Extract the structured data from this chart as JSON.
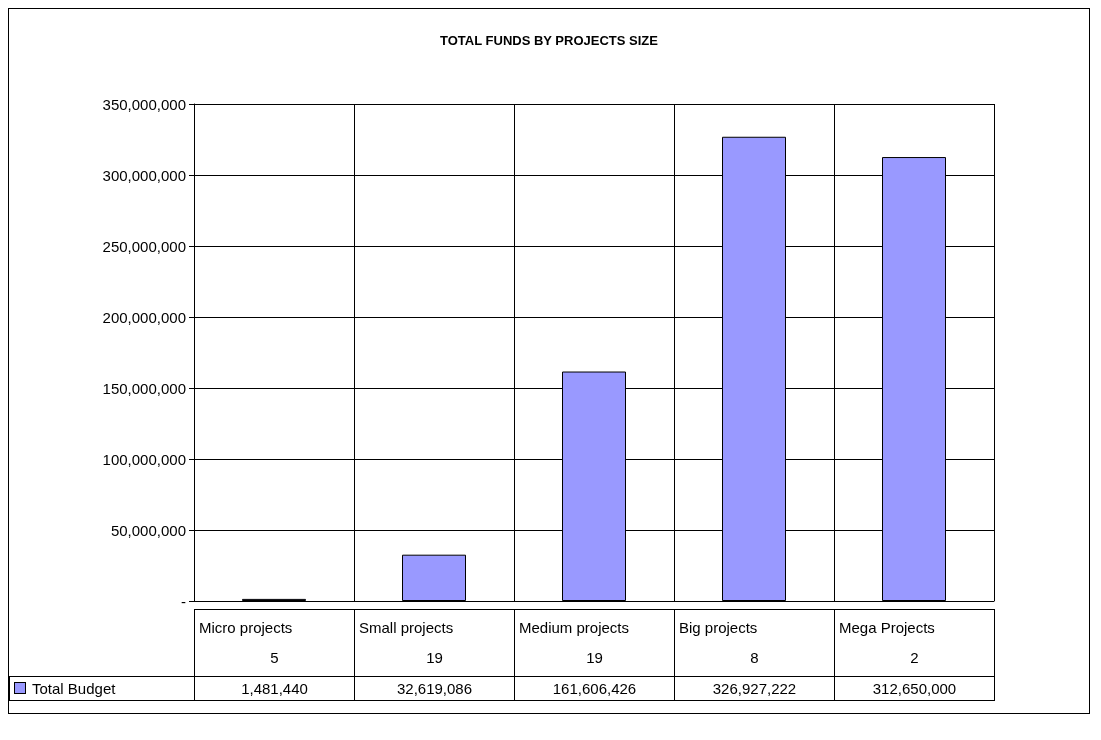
{
  "chart_data": {
    "type": "bar",
    "title": "TOTAL FUNDS BY PROJECTS SIZE",
    "categories": [
      "Micro projects\n5",
      "Small projects\n19",
      "Medium projects\n19",
      "Big projects\n8",
      "Mega Projects\n2"
    ],
    "series": [
      {
        "name": "Total Budget",
        "color": "#9999ff",
        "values": [
          1481440,
          32619086,
          161606426,
          326927222,
          312650000
        ],
        "value_labels": [
          "1,481,440",
          "32,619,086",
          "161,606,426",
          "326,927,222",
          "312,650,000"
        ]
      }
    ],
    "ylim": [
      0,
      350000000
    ],
    "yticks": [
      {
        "value": 0,
        "label": "-"
      },
      {
        "value": 50000000,
        "label": "50,000,000"
      },
      {
        "value": 100000000,
        "label": "100,000,000"
      },
      {
        "value": 150000000,
        "label": "150,000,000"
      },
      {
        "value": 200000000,
        "label": "200,000,000"
      },
      {
        "value": 250000000,
        "label": "250,000,000"
      },
      {
        "value": 300000000,
        "label": "300,000,000"
      },
      {
        "value": 350000000,
        "label": "350,000,000"
      }
    ],
    "grid": true,
    "legend": "bottom left"
  }
}
